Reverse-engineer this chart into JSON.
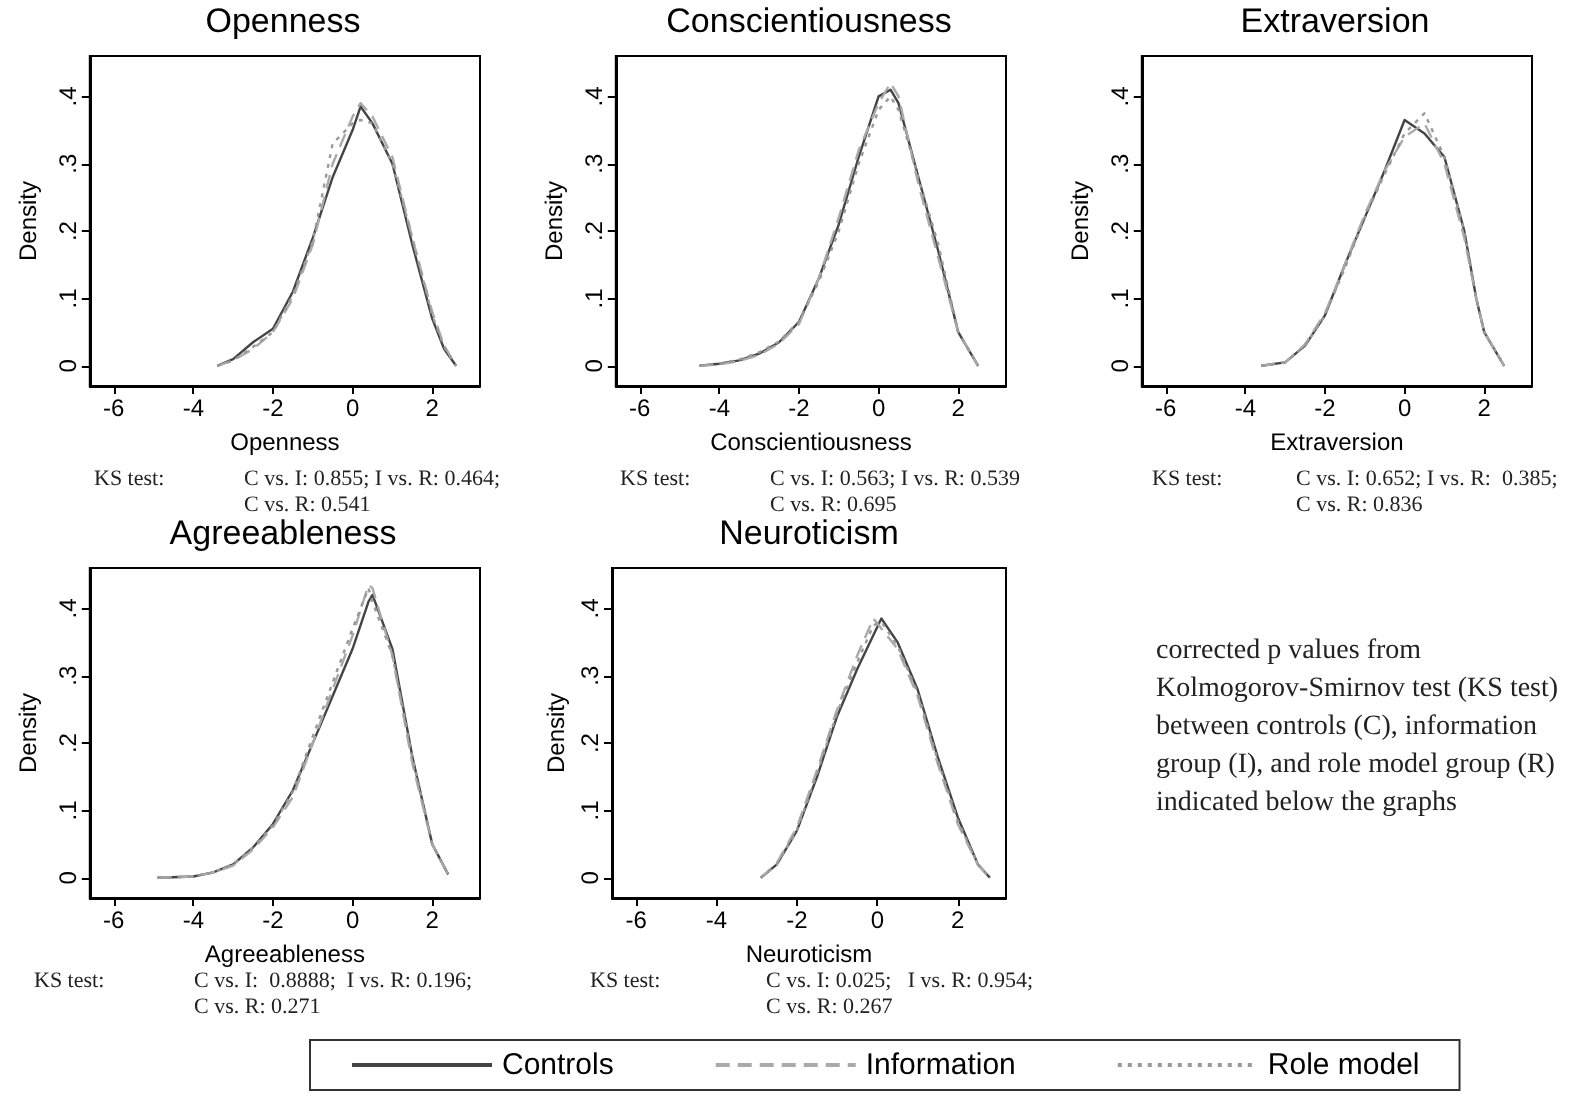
{
  "chart_data": [
    {
      "type": "line",
      "title": "Openness",
      "xlabel": "Openness",
      "ylabel": "Density",
      "xlim": [
        -6.6,
        3.2
      ],
      "xticks": [
        -6,
        -4,
        -2,
        0,
        2
      ],
      "ylim": [
        -0.03,
        0.46
      ],
      "yticks": [
        {
          "value": 0,
          "label": "0"
        },
        {
          "value": 0.1,
          "label": ".1"
        },
        {
          "value": 0.2,
          "label": ".2"
        },
        {
          "value": 0.3,
          "label": ".3"
        },
        {
          "value": 0.4,
          "label": ".4"
        }
      ],
      "grid": false,
      "marker": "none",
      "annotations": [
        "KS test:",
        "C vs. I: 0.855; I vs. R: 0.464;",
        "C vs. R: 0.541"
      ],
      "x": [
        -3.4,
        -3,
        -2.5,
        -2,
        -1.5,
        -1,
        -0.5,
        0,
        0.2,
        0.5,
        1,
        1.5,
        2,
        2.3,
        2.6
      ],
      "series": [
        {
          "color": "#444444",
          "line_style": "solid",
          "values": [
            0,
            0.01,
            0.035,
            0.055,
            0.11,
            0.19,
            0.28,
            0.35,
            0.385,
            0.36,
            0.3,
            0.18,
            0.07,
            0.025,
            0
          ]
        },
        {
          "color": "#aaaaaa",
          "line_style": "dashed",
          "values": [
            0,
            0.008,
            0.025,
            0.05,
            0.1,
            0.18,
            0.3,
            0.37,
            0.39,
            0.37,
            0.31,
            0.19,
            0.08,
            0.03,
            0
          ]
        },
        {
          "color": "#999999",
          "line_style": "dotted",
          "values": [
            0,
            0.008,
            0.028,
            0.05,
            0.105,
            0.185,
            0.33,
            0.36,
            0.365,
            0.36,
            0.3,
            0.19,
            0.075,
            0.028,
            0
          ]
        }
      ]
    },
    {
      "type": "line",
      "title": "Conscientiousness",
      "xlabel": "Conscientiousness",
      "ylabel": "Density",
      "xlim": [
        -6.6,
        3.2
      ],
      "xticks": [
        -6,
        -4,
        -2,
        0,
        2
      ],
      "ylim": [
        -0.03,
        0.46
      ],
      "yticks": [
        {
          "value": 0,
          "label": "0"
        },
        {
          "value": 0.1,
          "label": ".1"
        },
        {
          "value": 0.2,
          "label": ".2"
        },
        {
          "value": 0.3,
          "label": ".3"
        },
        {
          "value": 0.4,
          "label": ".4"
        }
      ],
      "grid": false,
      "marker": "none",
      "annotations": [
        "KS test:",
        "C vs. I: 0.563; I vs. R: 0.539",
        "C vs. R: 0.695"
      ],
      "x": [
        -4.5,
        -4,
        -3.5,
        -3,
        -2.5,
        -2,
        -1.5,
        -1,
        -0.5,
        0,
        0.3,
        0.5,
        1,
        1.5,
        2,
        2.5
      ],
      "series": [
        {
          "color": "#444444",
          "line_style": "solid",
          "values": [
            0,
            0.003,
            0.008,
            0.018,
            0.035,
            0.065,
            0.13,
            0.21,
            0.31,
            0.4,
            0.41,
            0.39,
            0.28,
            0.17,
            0.05,
            0
          ]
        },
        {
          "color": "#aaaaaa",
          "line_style": "dashed",
          "values": [
            0,
            0.002,
            0.007,
            0.016,
            0.033,
            0.062,
            0.13,
            0.22,
            0.32,
            0.39,
            0.42,
            0.4,
            0.27,
            0.16,
            0.05,
            0
          ]
        },
        {
          "color": "#999999",
          "line_style": "dotted",
          "values": [
            0,
            0.003,
            0.009,
            0.02,
            0.036,
            0.066,
            0.125,
            0.2,
            0.3,
            0.38,
            0.4,
            0.38,
            0.28,
            0.18,
            0.05,
            0
          ]
        }
      ]
    },
    {
      "type": "line",
      "title": "Extraversion",
      "xlabel": "Extraversion",
      "ylabel": "Density",
      "xlim": [
        -6.6,
        3.2
      ],
      "xticks": [
        -6,
        -4,
        -2,
        0,
        2
      ],
      "ylim": [
        -0.03,
        0.46
      ],
      "yticks": [
        {
          "value": 0,
          "label": "0"
        },
        {
          "value": 0.1,
          "label": ".1"
        },
        {
          "value": 0.2,
          "label": ".2"
        },
        {
          "value": 0.3,
          "label": ".3"
        },
        {
          "value": 0.4,
          "label": ".4"
        }
      ],
      "grid": false,
      "marker": "none",
      "annotations": [
        "KS test:",
        "C vs. I: 0.652; I vs. R:  0.385;",
        "C vs. R: 0.836"
      ],
      "x": [
        -3.6,
        -3,
        -2.5,
        -2,
        -1.5,
        -1,
        -0.5,
        0,
        0.5,
        1,
        1.5,
        1.8,
        2,
        2.5
      ],
      "series": [
        {
          "color": "#444444",
          "line_style": "solid",
          "values": [
            0,
            0.005,
            0.03,
            0.075,
            0.15,
            0.22,
            0.29,
            0.365,
            0.345,
            0.31,
            0.2,
            0.1,
            0.05,
            0
          ]
        },
        {
          "color": "#aaaaaa",
          "line_style": "dashed",
          "values": [
            0,
            0.005,
            0.032,
            0.078,
            0.15,
            0.225,
            0.29,
            0.34,
            0.36,
            0.3,
            0.19,
            0.1,
            0.05,
            0
          ]
        },
        {
          "color": "#999999",
          "line_style": "dotted",
          "values": [
            0,
            0.005,
            0.03,
            0.075,
            0.145,
            0.22,
            0.285,
            0.345,
            0.375,
            0.31,
            0.2,
            0.1,
            0.05,
            0
          ]
        }
      ]
    },
    {
      "type": "line",
      "title": "Agreeableness",
      "xlabel": "Agreeableness",
      "ylabel": "Density",
      "xlim": [
        -6.6,
        3.2
      ],
      "xticks": [
        -6,
        -4,
        -2,
        0,
        2
      ],
      "ylim": [
        -0.03,
        0.46
      ],
      "yticks": [
        {
          "value": 0,
          "label": "0"
        },
        {
          "value": 0.1,
          "label": ".1"
        },
        {
          "value": 0.2,
          "label": ".2"
        },
        {
          "value": 0.3,
          "label": ".3"
        },
        {
          "value": 0.4,
          "label": ".4"
        }
      ],
      "grid": false,
      "marker": "none",
      "annotations": [
        "KS test:",
        "C vs. I:  0.8888;  I vs. R: 0.196;",
        "C vs. R: 0.271"
      ],
      "x": [
        -4.9,
        -4,
        -3.5,
        -3,
        -2.5,
        -2,
        -1.5,
        -1,
        -0.5,
        0,
        0.4,
        0.5,
        1,
        1.5,
        2,
        2.4
      ],
      "series": [
        {
          "color": "#444444",
          "line_style": "solid",
          "values": [
            0,
            0.002,
            0.008,
            0.02,
            0.045,
            0.08,
            0.13,
            0.2,
            0.27,
            0.34,
            0.41,
            0.42,
            0.34,
            0.18,
            0.05,
            0.005
          ]
        },
        {
          "color": "#aaaaaa",
          "line_style": "dashed",
          "values": [
            0,
            0.002,
            0.008,
            0.018,
            0.042,
            0.075,
            0.12,
            0.2,
            0.28,
            0.36,
            0.435,
            0.43,
            0.33,
            0.17,
            0.05,
            0.005
          ]
        },
        {
          "color": "#999999",
          "line_style": "dotted",
          "values": [
            0,
            0.002,
            0.008,
            0.02,
            0.045,
            0.078,
            0.128,
            0.21,
            0.29,
            0.37,
            0.43,
            0.41,
            0.33,
            0.18,
            0.05,
            0.005
          ]
        }
      ]
    },
    {
      "type": "line",
      "title": "Neuroticism",
      "xlabel": "Neuroticism",
      "ylabel": "Density",
      "xlim": [
        -6.6,
        3.2
      ],
      "xticks": [
        -6,
        -4,
        -2,
        0,
        2
      ],
      "ylim": [
        -0.03,
        0.46
      ],
      "yticks": [
        {
          "value": 0,
          "label": "0"
        },
        {
          "value": 0.1,
          "label": ".1"
        },
        {
          "value": 0.2,
          "label": ".2"
        },
        {
          "value": 0.3,
          "label": ".3"
        },
        {
          "value": 0.4,
          "label": ".4"
        }
      ],
      "grid": false,
      "marker": "none",
      "legend": "bottom",
      "annotations": [
        "KS test:",
        "C vs. I: 0.025;   I vs. R: 0.954;",
        "C vs. R: 0.267"
      ],
      "x": [
        -2.9,
        -2.5,
        -2,
        -1.5,
        -1,
        -0.5,
        -0.1,
        0.1,
        0.5,
        1,
        1.5,
        2,
        2.5,
        2.8
      ],
      "series": [
        {
          "name": "Controls",
          "color": "#444444",
          "line_style": "solid",
          "values": [
            0,
            0.02,
            0.07,
            0.15,
            0.24,
            0.31,
            0.36,
            0.385,
            0.35,
            0.28,
            0.18,
            0.09,
            0.02,
            0
          ]
        },
        {
          "name": "Information",
          "color": "#aaaaaa",
          "line_style": "dashed",
          "values": [
            0,
            0.022,
            0.075,
            0.16,
            0.25,
            0.33,
            0.385,
            0.37,
            0.34,
            0.27,
            0.17,
            0.08,
            0.02,
            0
          ]
        },
        {
          "name": "Role model",
          "color": "#999999",
          "line_style": "dotted",
          "values": [
            0,
            0.02,
            0.07,
            0.155,
            0.245,
            0.32,
            0.375,
            0.38,
            0.345,
            0.275,
            0.175,
            0.085,
            0.02,
            0
          ]
        }
      ]
    },
    {
      "type": "other",
      "annotations": [
        "corrected p values from Kolmogorov-Smirnov test (KS test) between controls (C), information group (I), and role model group (R) indicated below the graphs"
      ]
    }
  ]
}
